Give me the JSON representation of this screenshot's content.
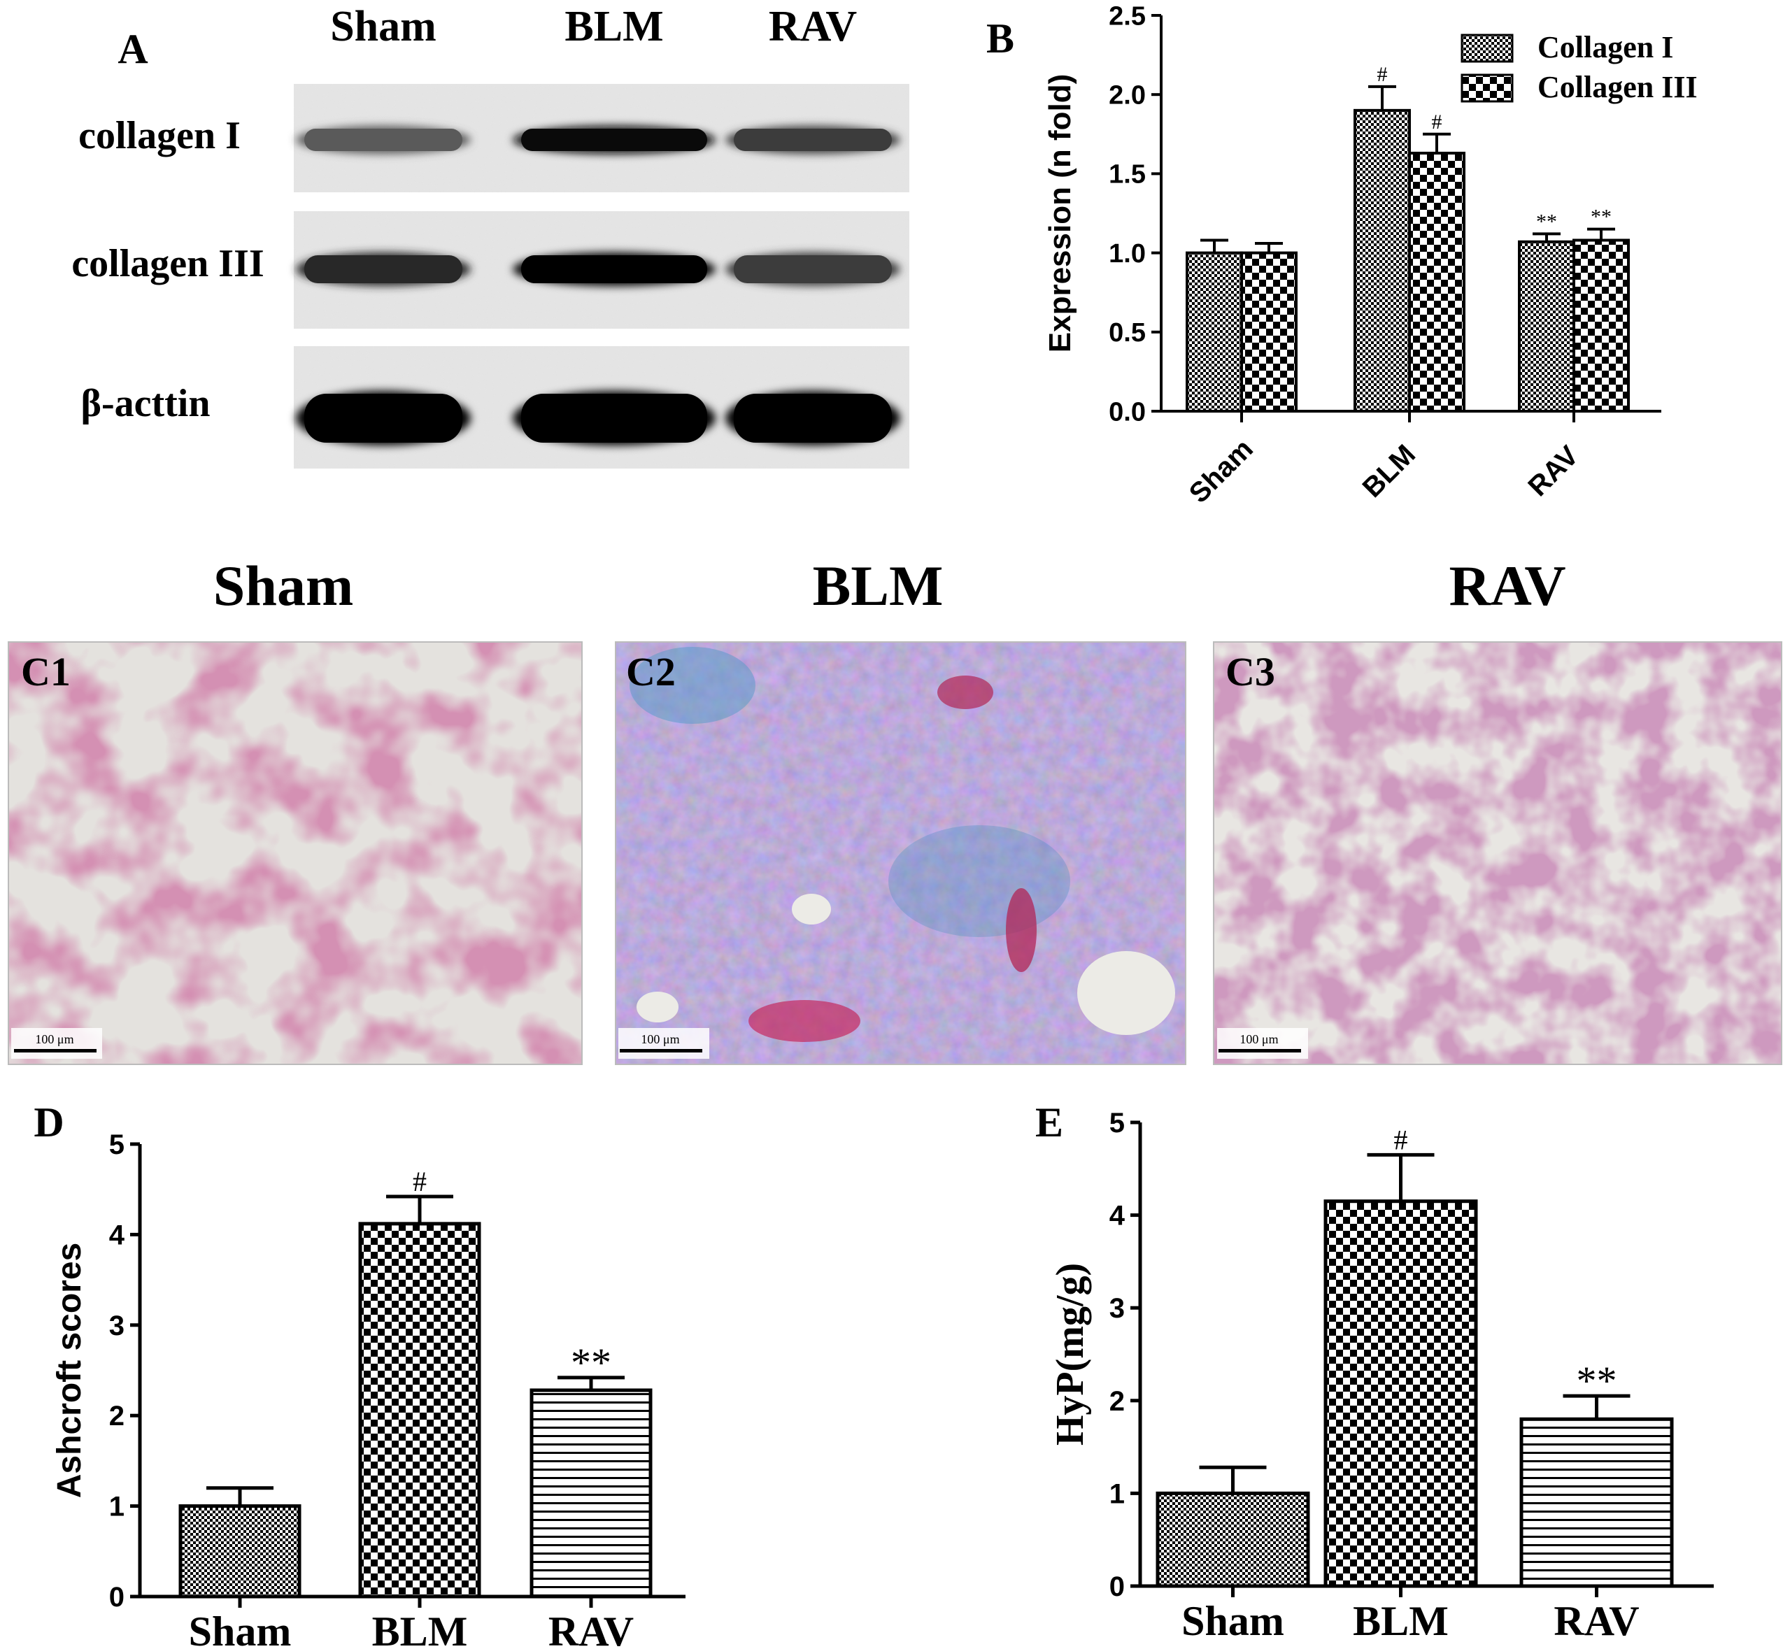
{
  "panel_labels": {
    "a": "A",
    "b": "B",
    "d": "D",
    "e": "E"
  },
  "western_blot": {
    "lanes": [
      "Sham",
      "BLM",
      "RAV"
    ],
    "rows": [
      {
        "label": "collagen I",
        "band_intensity": [
          0.55,
          0.95,
          0.7
        ]
      },
      {
        "label": "collagen III",
        "band_intensity": [
          0.8,
          1.0,
          0.7
        ]
      },
      {
        "label": "β-acttin",
        "band_intensity": [
          1.0,
          1.0,
          1.0
        ]
      }
    ]
  },
  "histology": {
    "headers": [
      "Sham",
      "BLM",
      "RAV"
    ],
    "panels": [
      {
        "label": "C1",
        "scale_bar": "100 μm"
      },
      {
        "label": "C2",
        "scale_bar": "100 μm"
      },
      {
        "label": "C3",
        "scale_bar": "100 μm"
      }
    ]
  },
  "chart_data": [
    {
      "panel": "B",
      "type": "bar",
      "title": "",
      "xlabel": "",
      "ylabel": "Expression (n fold)",
      "ylim": [
        0,
        2.5
      ],
      "yticks": [
        "0.0",
        "0.5",
        "1.0",
        "1.5",
        "2.0",
        "2.5"
      ],
      "categories": [
        "Sham",
        "BLM",
        "RAV"
      ],
      "legend_position": "top-right",
      "series": [
        {
          "name": "Collagen I",
          "values": [
            1.0,
            1.9,
            1.07
          ],
          "errors": [
            0.08,
            0.15,
            0.05
          ],
          "annotations": [
            "",
            "#",
            "**"
          ]
        },
        {
          "name": "Collagen III",
          "values": [
            1.0,
            1.63,
            1.08
          ],
          "errors": [
            0.06,
            0.12,
            0.07
          ],
          "annotations": [
            "",
            "#",
            "**"
          ]
        }
      ]
    },
    {
      "panel": "D",
      "type": "bar",
      "title": "",
      "xlabel": "",
      "ylabel": "Ashcroft scores",
      "ylim": [
        0,
        5
      ],
      "yticks": [
        "0",
        "1",
        "2",
        "3",
        "4",
        "5"
      ],
      "categories": [
        "Sham",
        "BLM",
        "RAV"
      ],
      "values": [
        1.0,
        4.12,
        2.28
      ],
      "errors": [
        0.2,
        0.3,
        0.14
      ],
      "annotations": [
        "",
        "#",
        "**"
      ]
    },
    {
      "panel": "E",
      "type": "bar",
      "title": "",
      "xlabel": "",
      "ylabel": "HyP(mg/g)",
      "ylim": [
        0,
        5
      ],
      "yticks": [
        "0",
        "1",
        "2",
        "3",
        "4",
        "5"
      ],
      "categories": [
        "Sham",
        "BLM",
        "RAV"
      ],
      "values": [
        1.0,
        4.15,
        1.8
      ],
      "errors": [
        0.28,
        0.5,
        0.25
      ],
      "annotations": [
        "",
        "#",
        "**"
      ]
    }
  ]
}
